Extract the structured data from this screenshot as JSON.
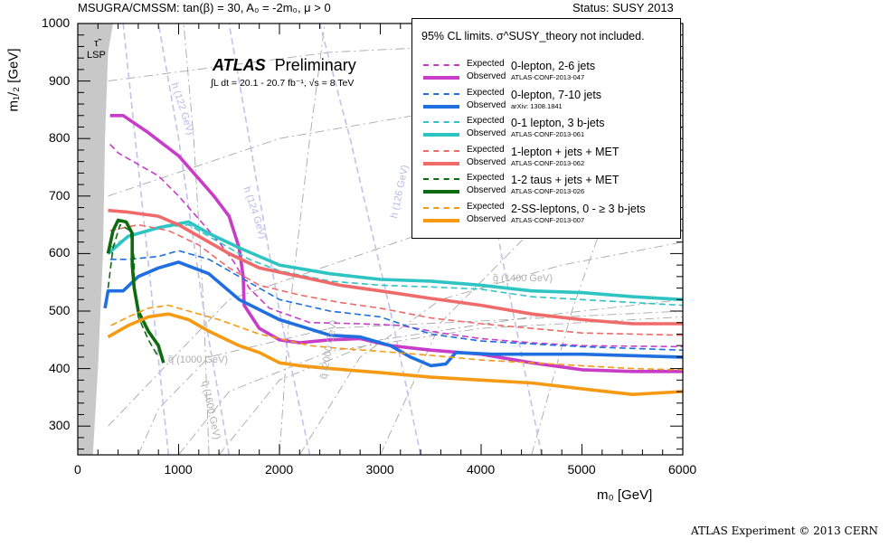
{
  "header": {
    "left": "MSUGRA/CMSSM: tan(β) = 30, A₀ = -2m₀, μ > 0",
    "right": "Status: SUSY 2013"
  },
  "credit": "ATLAS Experiment © 2013 CERN",
  "plot_labels": {
    "atlas_bold": "ATLAS",
    "atlas_rest": "Preliminary",
    "lumi": "∫L dt = 20.1 - 20.7 fb⁻¹, √s = 8 TeV",
    "stau_lsp": [
      "τ̃",
      "LSP"
    ],
    "squark_1000": "q̃ (1000 GeV)",
    "squark_1600": "q̃ (1600 GeV)",
    "squark_2000": "q̃ (2000 GeV)",
    "gluino_1400": "g̃ (1400 GeV)",
    "higgs_122": "h (122 GeV)",
    "higgs_124": "h (124 GeV)",
    "higgs_126": "h (126 GeV)"
  },
  "legend": {
    "header": "95% CL limits. σ^SUSY_theory not included.",
    "expected_label": "Expected",
    "observed_label": "Observed",
    "entries": [
      {
        "title": "0-lepton, 2-6 jets",
        "ref": "ATLAS-CONF-2013-047",
        "color": "#c83cc8"
      },
      {
        "title": "0-lepton, 7-10 jets",
        "ref": "arXiv: 1308.1841",
        "color": "#1f6fe0"
      },
      {
        "title": "0-1 lepton, 3 b-jets",
        "ref": "ATLAS-CONF-2013-061",
        "color": "#2ec4c4"
      },
      {
        "title": "1-lepton + jets + MET",
        "ref": "ATLAS-CONF-2013-062",
        "color": "#f06a6a"
      },
      {
        "title": "1-2 taus + jets + MET",
        "ref": "ATLAS-CONF-2013-026",
        "color": "#0e6a0e"
      },
      {
        "title": "2-SS-leptons, 0 - ≥ 3 b-jets",
        "ref": "ATLAS-CONF-2013-007",
        "color": "#f59a12"
      }
    ]
  },
  "chart_data": {
    "type": "line",
    "xlabel": "m₀ [GeV]",
    "ylabel": "m₁/₂ [GeV]",
    "xlim": [
      0,
      6000
    ],
    "ylim": [
      250,
      1000
    ],
    "xticks": [
      0,
      1000,
      2000,
      3000,
      4000,
      5000,
      6000
    ],
    "yticks": [
      300,
      400,
      500,
      600,
      700,
      800,
      900,
      1000
    ],
    "stau_lsp_boundary": [
      [
        150,
        250
      ],
      [
        200,
        400
      ],
      [
        250,
        600
      ],
      [
        270,
        800
      ],
      [
        300,
        950
      ],
      [
        350,
        1000
      ]
    ],
    "series": [
      {
        "legend_index": 0,
        "kind": "expected",
        "color": "#c83cc8",
        "points": [
          [
            320,
            790
          ],
          [
            400,
            775
          ],
          [
            600,
            755
          ],
          [
            800,
            735
          ],
          [
            1000,
            700
          ],
          [
            1200,
            660
          ],
          [
            1400,
            620
          ],
          [
            1550,
            585
          ],
          [
            1700,
            540
          ],
          [
            1900,
            505
          ],
          [
            2300,
            480
          ],
          [
            2800,
            478
          ],
          [
            3200,
            475
          ],
          [
            3600,
            462
          ],
          [
            4000,
            452
          ],
          [
            4500,
            445
          ],
          [
            5000,
            440
          ],
          [
            6000,
            438
          ]
        ]
      },
      {
        "legend_index": 0,
        "kind": "observed",
        "color": "#c83cc8",
        "points": [
          [
            320,
            840
          ],
          [
            450,
            840
          ],
          [
            700,
            810
          ],
          [
            1000,
            770
          ],
          [
            1200,
            730
          ],
          [
            1350,
            700
          ],
          [
            1500,
            665
          ],
          [
            1600,
            610
          ],
          [
            1640,
            560
          ],
          [
            1650,
            510
          ],
          [
            1800,
            470
          ],
          [
            2000,
            450
          ],
          [
            2200,
            445
          ],
          [
            2500,
            450
          ],
          [
            2800,
            452
          ],
          [
            3100,
            440
          ],
          [
            3500,
            432
          ],
          [
            4000,
            425
          ],
          [
            4500,
            410
          ],
          [
            5000,
            398
          ],
          [
            5500,
            395
          ],
          [
            6000,
            395
          ]
        ]
      },
      {
        "legend_index": 1,
        "kind": "expected",
        "color": "#1f6fe0",
        "points": [
          [
            320,
            590
          ],
          [
            500,
            590
          ],
          [
            800,
            595
          ],
          [
            1000,
            605
          ],
          [
            1300,
            590
          ],
          [
            1600,
            560
          ],
          [
            2000,
            520
          ],
          [
            2500,
            500
          ],
          [
            3000,
            490
          ],
          [
            3500,
            460
          ],
          [
            4000,
            448
          ],
          [
            5000,
            438
          ],
          [
            6000,
            432
          ]
        ]
      },
      {
        "legend_index": 1,
        "kind": "observed",
        "color": "#1f6fe0",
        "points": [
          [
            270,
            505
          ],
          [
            300,
            535
          ],
          [
            450,
            535
          ],
          [
            600,
            560
          ],
          [
            800,
            575
          ],
          [
            1000,
            585
          ],
          [
            1300,
            565
          ],
          [
            1600,
            520
          ],
          [
            2000,
            485
          ],
          [
            2500,
            458
          ],
          [
            2800,
            455
          ],
          [
            3100,
            440
          ],
          [
            3300,
            420
          ],
          [
            3500,
            405
          ],
          [
            3650,
            408
          ],
          [
            3750,
            428
          ],
          [
            4100,
            425
          ],
          [
            4500,
            425
          ],
          [
            5000,
            425
          ],
          [
            6000,
            420
          ]
        ]
      },
      {
        "legend_index": 2,
        "kind": "expected",
        "color": "#2ec4c4",
        "points": [
          [
            320,
            610
          ],
          [
            500,
            630
          ],
          [
            800,
            645
          ],
          [
            1100,
            650
          ],
          [
            1400,
            620
          ],
          [
            1700,
            590
          ],
          [
            2000,
            570
          ],
          [
            2500,
            552
          ],
          [
            3000,
            545
          ],
          [
            3500,
            542
          ],
          [
            4000,
            538
          ],
          [
            4500,
            525
          ],
          [
            5000,
            520
          ],
          [
            5500,
            515
          ],
          [
            6000,
            510
          ]
        ]
      },
      {
        "legend_index": 2,
        "kind": "observed",
        "color": "#2ec4c4",
        "points": [
          [
            300,
            600
          ],
          [
            500,
            630
          ],
          [
            800,
            645
          ],
          [
            1100,
            655
          ],
          [
            1300,
            635
          ],
          [
            1600,
            610
          ],
          [
            2000,
            580
          ],
          [
            2500,
            565
          ],
          [
            3000,
            555
          ],
          [
            3500,
            552
          ],
          [
            4000,
            545
          ],
          [
            4500,
            535
          ],
          [
            5000,
            532
          ],
          [
            5500,
            525
          ],
          [
            6000,
            520
          ]
        ]
      },
      {
        "legend_index": 3,
        "kind": "expected",
        "color": "#f06a6a",
        "points": [
          [
            320,
            640
          ],
          [
            600,
            650
          ],
          [
            900,
            640
          ],
          [
            1200,
            615
          ],
          [
            1500,
            575
          ],
          [
            1800,
            545
          ],
          [
            2200,
            528
          ],
          [
            2600,
            515
          ],
          [
            3000,
            505
          ],
          [
            3500,
            488
          ],
          [
            4000,
            478
          ],
          [
            4500,
            470
          ],
          [
            5000,
            462
          ],
          [
            5500,
            460
          ],
          [
            6000,
            458
          ]
        ]
      },
      {
        "legend_index": 3,
        "kind": "observed",
        "color": "#f06a6a",
        "points": [
          [
            300,
            675
          ],
          [
            500,
            672
          ],
          [
            800,
            665
          ],
          [
            1000,
            650
          ],
          [
            1200,
            630
          ],
          [
            1500,
            600
          ],
          [
            1800,
            575
          ],
          [
            2200,
            560
          ],
          [
            2600,
            545
          ],
          [
            3000,
            535
          ],
          [
            3500,
            522
          ],
          [
            4000,
            510
          ],
          [
            4500,
            495
          ],
          [
            5000,
            485
          ],
          [
            5500,
            478
          ],
          [
            6000,
            478
          ]
        ]
      },
      {
        "legend_index": 4,
        "kind": "expected",
        "color": "#0e6a0e",
        "points": [
          [
            300,
            540
          ],
          [
            350,
            610
          ],
          [
            420,
            650
          ],
          [
            520,
            640
          ],
          [
            560,
            590
          ],
          [
            560,
            540
          ],
          [
            600,
            490
          ],
          [
            700,
            450
          ],
          [
            800,
            420
          ]
        ]
      },
      {
        "legend_index": 4,
        "kind": "observed",
        "color": "#0e6a0e",
        "points": [
          [
            300,
            600
          ],
          [
            350,
            640
          ],
          [
            400,
            658
          ],
          [
            480,
            655
          ],
          [
            540,
            635
          ],
          [
            540,
            580
          ],
          [
            560,
            540
          ],
          [
            600,
            500
          ],
          [
            700,
            465
          ],
          [
            800,
            440
          ],
          [
            850,
            410
          ]
        ]
      },
      {
        "legend_index": 5,
        "kind": "expected",
        "color": "#f59a12",
        "points": [
          [
            330,
            475
          ],
          [
            500,
            490
          ],
          [
            700,
            505
          ],
          [
            900,
            510
          ],
          [
            1100,
            500
          ],
          [
            1400,
            485
          ],
          [
            1800,
            460
          ],
          [
            2000,
            452
          ],
          [
            2300,
            440
          ],
          [
            2600,
            435
          ],
          [
            3000,
            430
          ],
          [
            3500,
            423
          ],
          [
            4000,
            415
          ],
          [
            4500,
            410
          ],
          [
            5000,
            405
          ],
          [
            5500,
            400
          ],
          [
            6000,
            398
          ]
        ]
      },
      {
        "legend_index": 5,
        "kind": "observed",
        "color": "#f59a12",
        "points": [
          [
            300,
            455
          ],
          [
            500,
            475
          ],
          [
            700,
            490
          ],
          [
            900,
            495
          ],
          [
            1100,
            485
          ],
          [
            1300,
            465
          ],
          [
            1600,
            440
          ],
          [
            1800,
            428
          ],
          [
            2000,
            410
          ],
          [
            2200,
            405
          ],
          [
            2500,
            400
          ],
          [
            3000,
            393
          ],
          [
            3500,
            385
          ],
          [
            4000,
            380
          ],
          [
            4500,
            375
          ],
          [
            5000,
            365
          ],
          [
            5500,
            355
          ],
          [
            6000,
            360
          ]
        ]
      }
    ]
  }
}
